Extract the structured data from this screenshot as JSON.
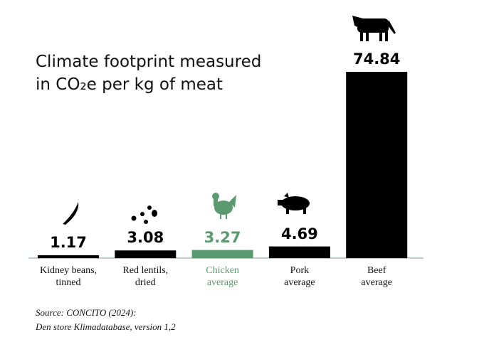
{
  "chart_data": {
    "type": "bar",
    "title": [
      "Climate footprint measured",
      "in CO₂e per kg of meat"
    ],
    "categories": [
      "Kidney beans,\ntinned",
      "Red lentils,\ndried",
      "Chicken\naverage",
      "Pork\naverage",
      "Beef\naverage"
    ],
    "values": [
      1.17,
      3.08,
      3.27,
      4.69,
      74.84
    ],
    "colors": [
      "#000000",
      "#000000",
      "#5a9a6e",
      "#000000",
      "#000000"
    ],
    "source": [
      "Source: CONCITO (2024):",
      "Den store Klimadatabase, version 1,2"
    ]
  }
}
